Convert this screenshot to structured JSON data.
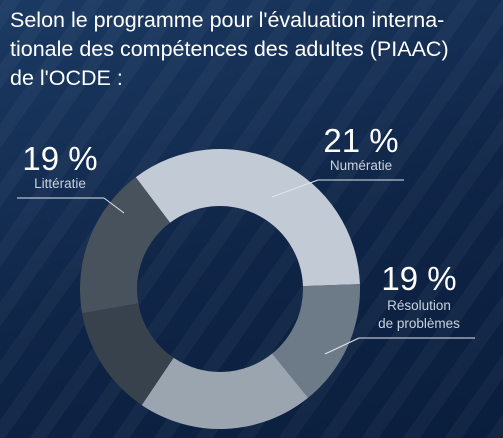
{
  "title": {
    "line1": "Selon le programme pour l'évaluation interna-",
    "line2": "tionale des compétences des adultes (PIAAC)",
    "line3": "de l'OCDE :"
  },
  "chart_data": {
    "type": "pie",
    "style": "donut",
    "slices": [
      {
        "name": "Numératie",
        "value": 21,
        "label": "21 %",
        "color": "#c2cad5"
      },
      {
        "name": "Résolution de problèmes",
        "value": 19,
        "label": "19 %",
        "color": "#6d7b88"
      },
      {
        "name": "",
        "value": null,
        "label": "",
        "color": "#9aa5b0"
      },
      {
        "name": "",
        "value": null,
        "label": "",
        "color": "#38424d"
      },
      {
        "name": "Littératie",
        "value": 19,
        "label": "19 %",
        "color": "#48525c"
      }
    ],
    "labels": {
      "numeratie": {
        "pct": "21 %",
        "name": "Numératie"
      },
      "resolution": {
        "pct": "19 %",
        "name_line1": "Résolution",
        "name_line2": "de problèmes"
      },
      "litteratie": {
        "pct": "19 %",
        "name": "Littératie"
      }
    }
  }
}
